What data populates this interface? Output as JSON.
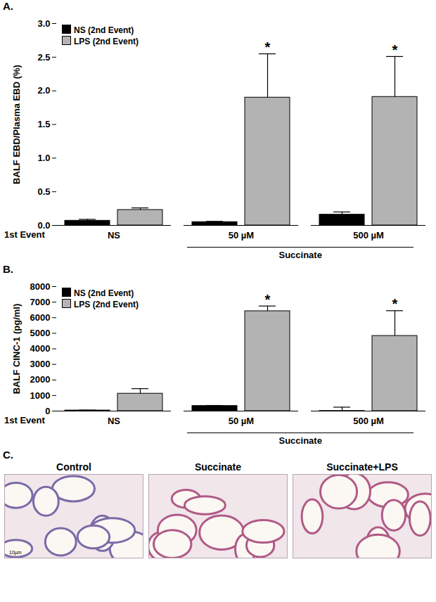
{
  "chart_data": [
    {
      "type": "bar",
      "title": "A.",
      "ylabel": "BALF EBD/Plasma EBD (%)",
      "xlabel": "1st Event",
      "categories": [
        "NS",
        "50 µM",
        "500 µM"
      ],
      "series": [
        {
          "name": "NS (2nd Event)",
          "color": "#000000",
          "values": [
            0.07,
            0.05,
            0.16
          ],
          "errors": [
            0.02,
            0.01,
            0.04
          ]
        },
        {
          "name": "LPS (2nd Event)",
          "color": "#b3b3b3",
          "values": [
            0.23,
            1.9,
            1.91
          ],
          "errors": [
            0.03,
            0.65,
            0.6
          ]
        }
      ],
      "groups": [
        {
          "label": "Succinate",
          "categories": [
            "50 µM",
            "500 µM"
          ]
        }
      ],
      "annotations": [
        {
          "text": "*",
          "category": "50 µM",
          "series": "LPS (2nd Event)"
        },
        {
          "text": "*",
          "category": "500 µM",
          "series": "LPS (2nd Event)"
        }
      ],
      "ylim": [
        0,
        3
      ],
      "yticks": [
        {
          "value": 0,
          "label": "0.0"
        },
        {
          "value": 0.5,
          "label": "0.5"
        },
        {
          "value": 1,
          "label": "1.0"
        },
        {
          "value": 1.5,
          "label": "1.5"
        },
        {
          "value": 2,
          "label": "2.0"
        },
        {
          "value": 2.5,
          "label": "2.5"
        },
        {
          "value": 3,
          "label": "3.0"
        }
      ],
      "legend": "top-left"
    },
    {
      "type": "bar",
      "title": "B.",
      "ylabel": "BALF CINC-1 (pg/ml)",
      "xlabel": "1st Event",
      "categories": [
        "NS",
        "50 µM",
        "500 µM"
      ],
      "series": [
        {
          "name": "NS (2nd Event)",
          "color": "#000000",
          "values": [
            40,
            330,
            10
          ],
          "errors": [
            20,
            30,
            240
          ]
        },
        {
          "name": "LPS (2nd Event)",
          "color": "#b3b3b3",
          "values": [
            1120,
            6420,
            4830
          ],
          "errors": [
            320,
            330,
            1620
          ]
        }
      ],
      "groups": [
        {
          "label": "Succinate",
          "categories": [
            "50 µM",
            "500 µM"
          ]
        }
      ],
      "annotations": [
        {
          "text": "*",
          "category": "50 µM",
          "series": "LPS (2nd Event)"
        },
        {
          "text": "*",
          "category": "500 µM",
          "series": "LPS (2nd Event)"
        }
      ],
      "ylim": [
        0,
        8000
      ],
      "yticks": [
        0,
        1000,
        2000,
        3000,
        4000,
        5000,
        6000,
        7000,
        8000
      ],
      "legend": "top-left"
    }
  ],
  "figure_panel": {
    "title": "C.",
    "images": [
      "Control",
      "Succinate",
      "Succinate+LPS"
    ],
    "scale_bar": "10µm"
  }
}
